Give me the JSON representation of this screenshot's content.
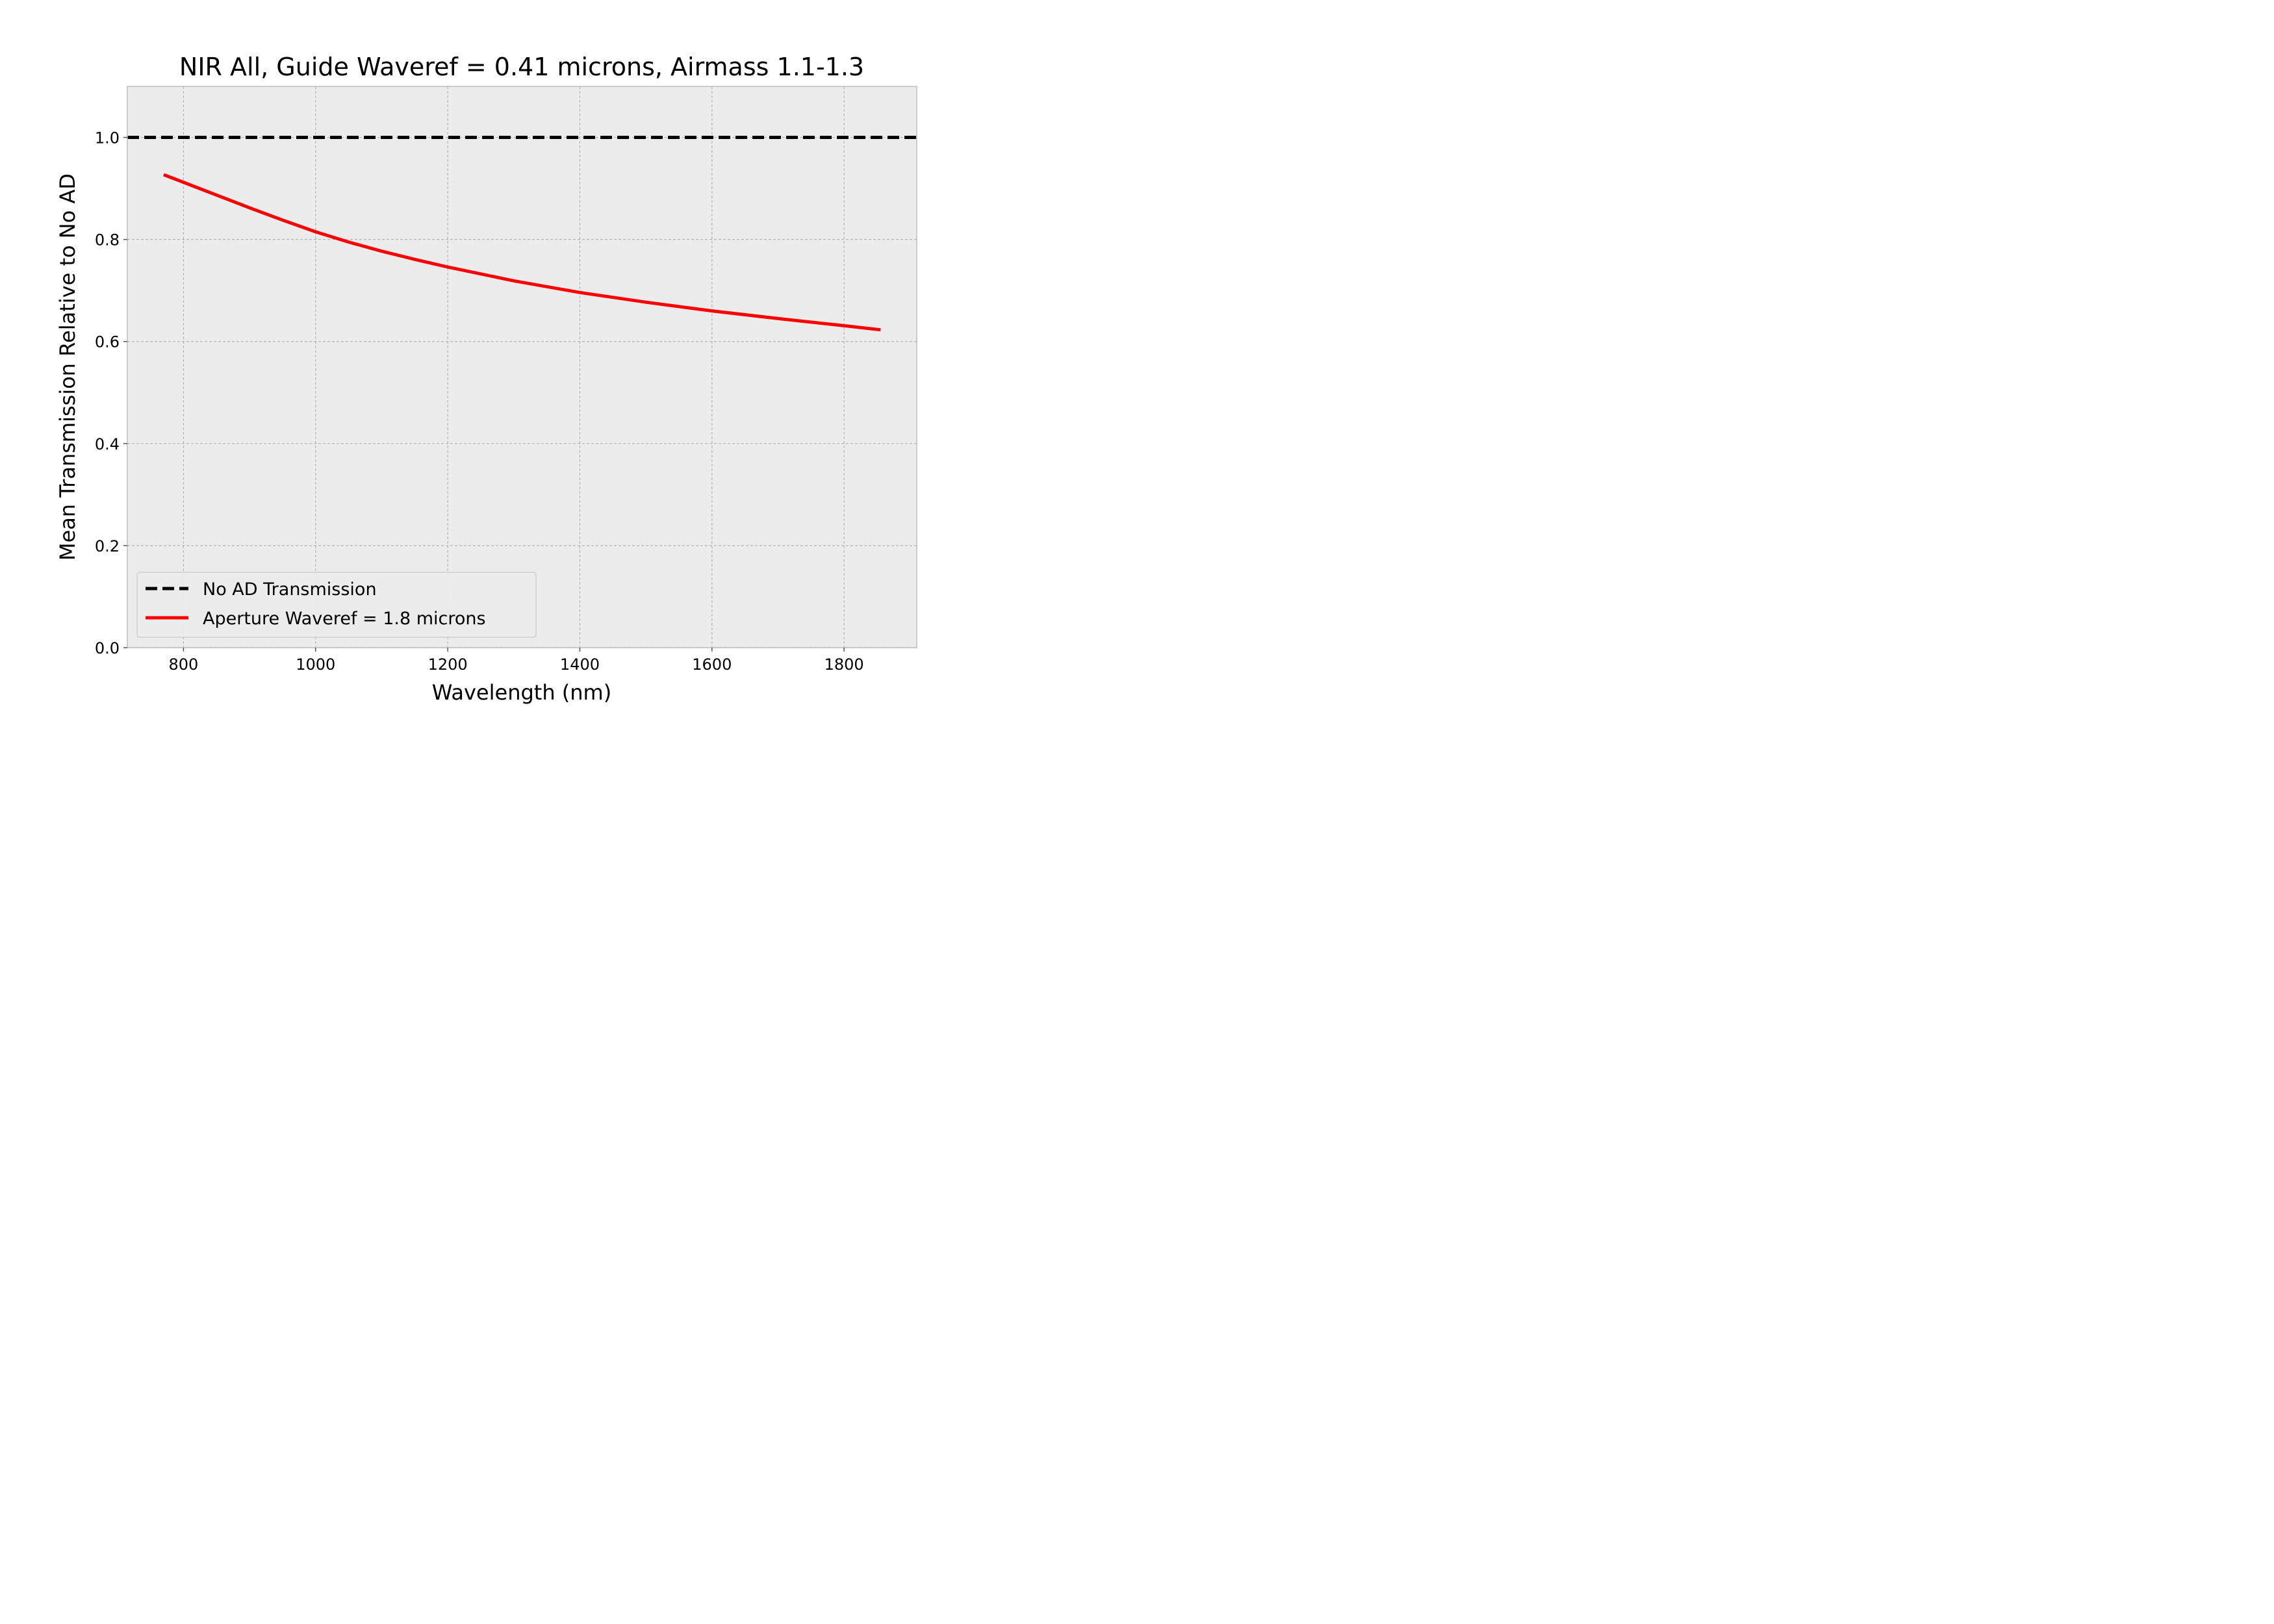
{
  "chart_data": {
    "type": "line",
    "title": "NIR All, Guide Waveref = 0.41 microns, Airmass 1.1-1.3",
    "xlabel": "Wavelength (nm)",
    "ylabel": "Mean Transmission Relative to No AD",
    "xlim": [
      715,
      1910
    ],
    "ylim": [
      0.0,
      1.1
    ],
    "xticks": [
      800,
      1000,
      1200,
      1400,
      1600,
      1800
    ],
    "yticks": [
      0.0,
      0.2,
      0.4,
      0.6,
      0.8,
      1.0
    ],
    "xtick_labels": [
      "800",
      "1000",
      "1200",
      "1400",
      "1600",
      "1800"
    ],
    "ytick_labels": [
      "0.0",
      "0.2",
      "0.4",
      "0.6",
      "0.8",
      "1.0"
    ],
    "grid": true,
    "legend_position": "lower-left",
    "series": [
      {
        "name": "No AD Transmission",
        "color": "#000000",
        "style": "dashed",
        "x": [
          715,
          1910
        ],
        "y": [
          1.0,
          1.0
        ]
      },
      {
        "name": "Aperture Waveref = 1.8 microns",
        "color": "#ff0000",
        "style": "solid",
        "x": [
          770,
          850,
          900,
          950,
          1000,
          1050,
          1100,
          1150,
          1200,
          1300,
          1400,
          1500,
          1600,
          1700,
          1800,
          1855
        ],
        "y": [
          0.927,
          0.887,
          0.862,
          0.838,
          0.815,
          0.795,
          0.777,
          0.761,
          0.746,
          0.719,
          0.696,
          0.677,
          0.66,
          0.645,
          0.631,
          0.623
        ]
      }
    ]
  }
}
